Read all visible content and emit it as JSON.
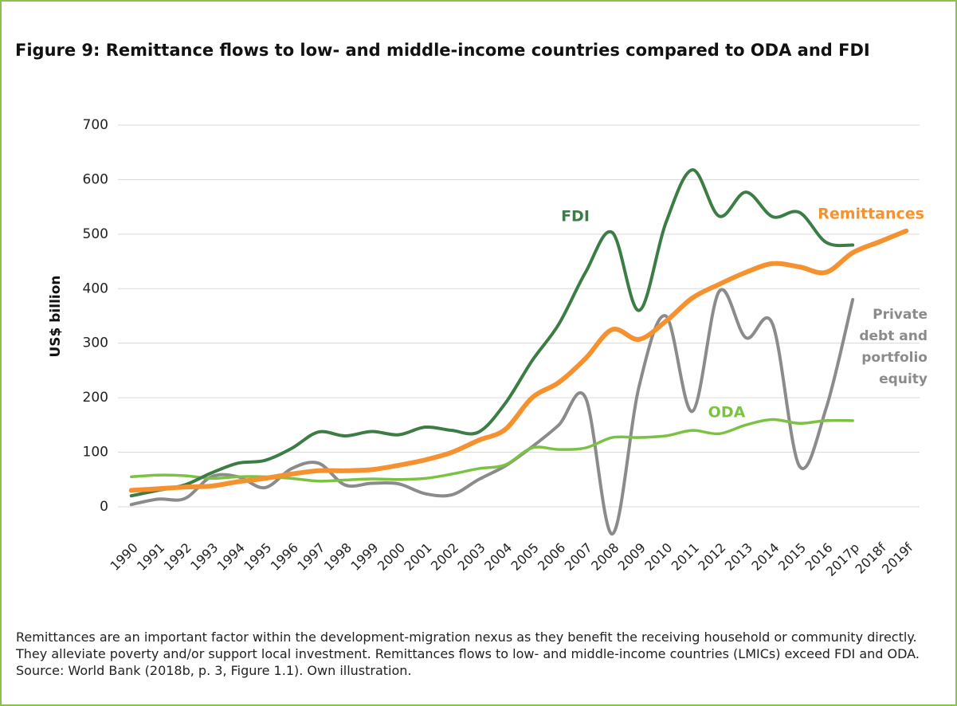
{
  "chart_data": {
    "type": "line",
    "title": "Figure 9: Remittance flows to low- and middle-income countries compared to ODA and FDI",
    "ylabel": "US$ billion",
    "categories": [
      "1990",
      "1991",
      "1992",
      "1993",
      "1994",
      "1995",
      "1996",
      "1997",
      "1998",
      "1999",
      "2000",
      "2001",
      "2002",
      "2003",
      "2004",
      "2005",
      "2006",
      "2007",
      "2008",
      "2009",
      "2010",
      "2011",
      "2012",
      "2013",
      "2014",
      "2015",
      "2016",
      "2017p",
      "2018f",
      "2019f"
    ],
    "series": [
      {
        "name": "FDI",
        "color": "#3b7d44",
        "values": [
          20,
          30,
          40,
          62,
          80,
          85,
          107,
          137,
          130,
          138,
          132,
          146,
          140,
          137,
          190,
          268,
          335,
          430,
          503,
          360,
          520,
          618,
          533,
          577,
          532,
          540,
          485,
          480,
          null,
          null
        ]
      },
      {
        "name": "Remittances",
        "color": "#f5922f",
        "values": [
          30,
          33,
          36,
          38,
          46,
          52,
          60,
          66,
          66,
          68,
          76,
          86,
          100,
          122,
          142,
          200,
          228,
          272,
          325,
          307,
          340,
          383,
          408,
          430,
          446,
          440,
          430,
          466,
          486,
          506
        ]
      },
      {
        "name": "ODA",
        "color": "#7cc242",
        "values": [
          55,
          58,
          57,
          52,
          55,
          55,
          52,
          47,
          49,
          51,
          50,
          52,
          60,
          70,
          77,
          108,
          105,
          108,
          127,
          127,
          130,
          140,
          134,
          150,
          160,
          153,
          158,
          158,
          null,
          null
        ]
      },
      {
        "name": "Private debt and portfolio equity",
        "color": "#8b8b8b",
        "values": [
          4,
          14,
          15,
          55,
          55,
          35,
          70,
          80,
          40,
          43,
          42,
          24,
          22,
          50,
          75,
          110,
          150,
          200,
          -50,
          220,
          350,
          175,
          395,
          310,
          335,
          75,
          180,
          380,
          null,
          null
        ]
      }
    ],
    "ylim": [
      -60,
      700
    ],
    "yticks": [
      0,
      100,
      200,
      300,
      400,
      500,
      600,
      700
    ],
    "grid": true
  },
  "caption": "Remittances are an important factor within the development-migration nexus as they benefit the receiving household or community directly. They alleviate poverty and/or support local investment. Remittances flows to low- and middle-income countries (LMICs) exceed FDI and ODA. Source: World Bank (2018b, p. 3, Figure 1.1). Own illustration."
}
